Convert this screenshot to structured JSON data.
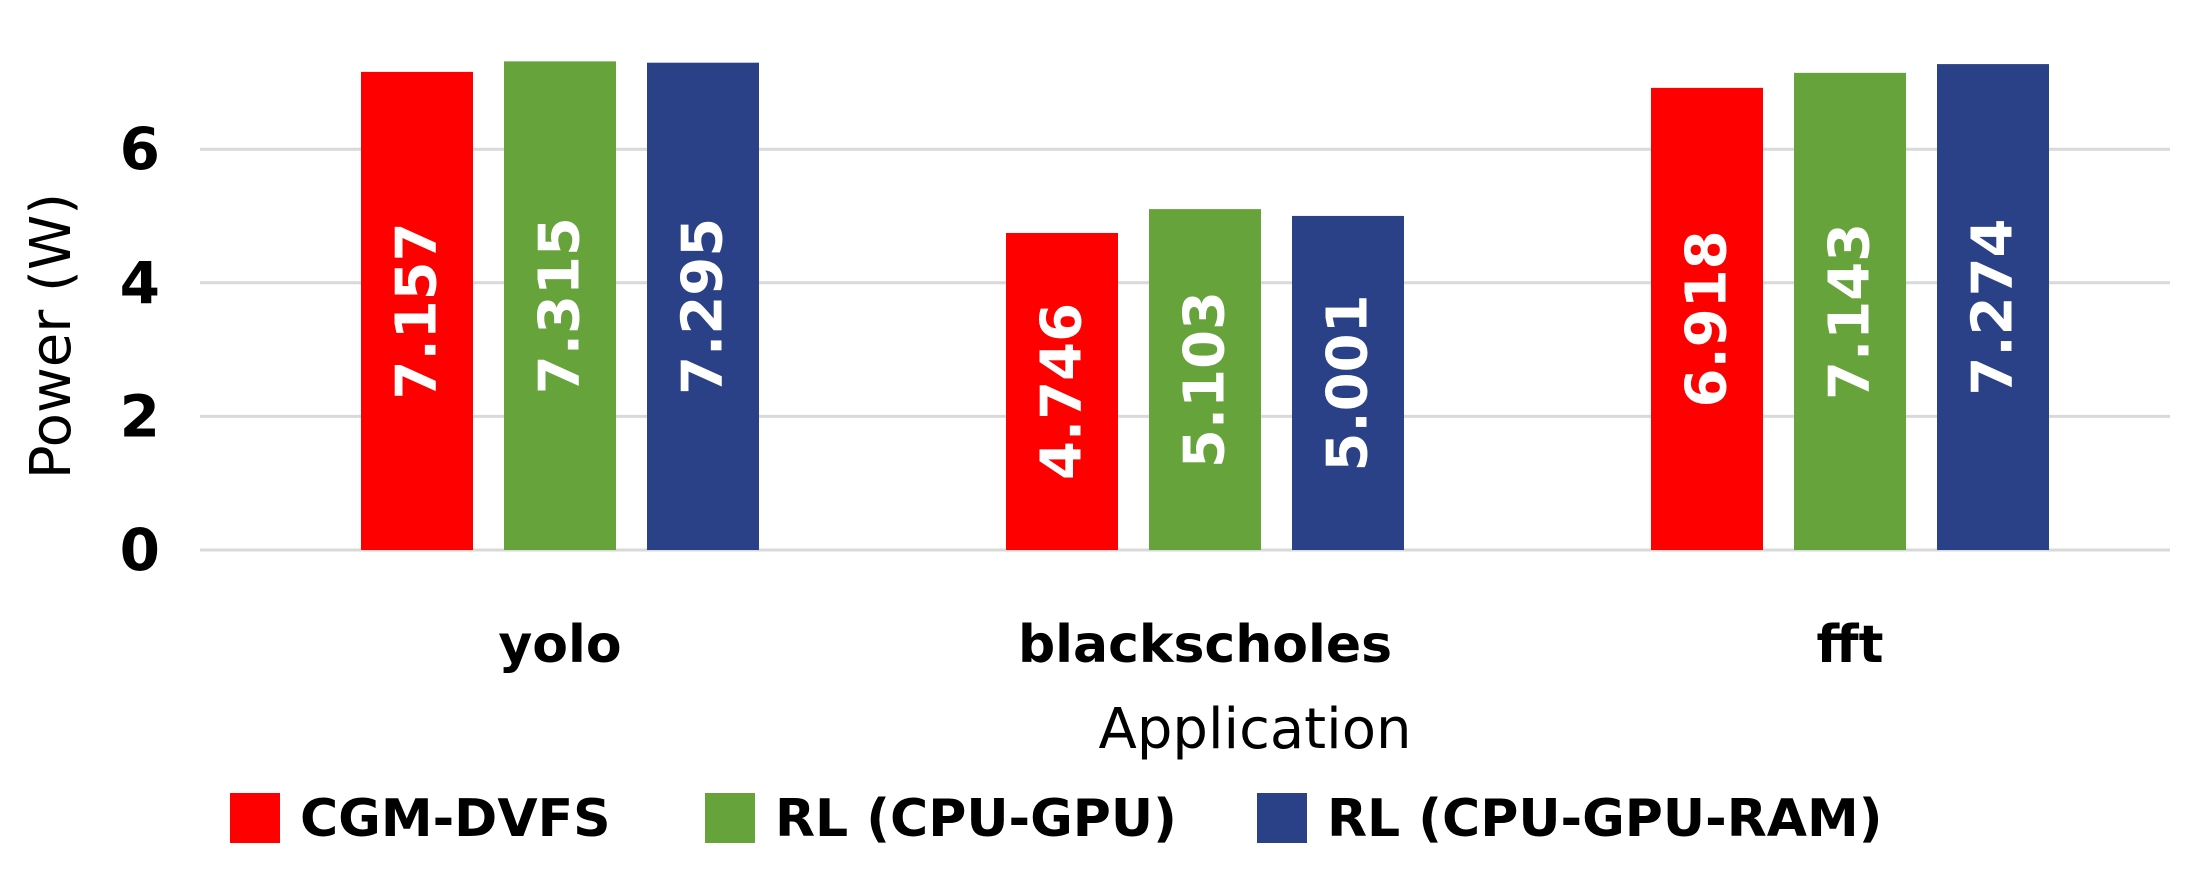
{
  "chart_data": {
    "type": "bar",
    "title": "",
    "xlabel": "Application",
    "ylabel": "Power (W)",
    "categories": [
      "yolo",
      "blackscholes",
      "fft"
    ],
    "series": [
      {
        "name": "CGM-DVFS",
        "color": "#ff0000",
        "values": [
          7.157,
          4.746,
          6.918
        ],
        "labels": [
          "7.157",
          "4.746",
          "6.918"
        ]
      },
      {
        "name": "RL (CPU-GPU)",
        "color": "#66a33b",
        "values": [
          7.315,
          5.103,
          7.143
        ],
        "labels": [
          "7.315",
          "5.103",
          "7.143"
        ]
      },
      {
        "name": "RL (CPU-GPU-RAM)",
        "color": "#2a4087",
        "values": [
          7.295,
          5.001,
          7.274
        ],
        "labels": [
          "7.295",
          "5.001",
          "7.274"
        ]
      }
    ],
    "yticks": [
      0,
      2,
      4,
      6
    ],
    "ytick_labels": [
      "0",
      "2",
      "4",
      "6"
    ],
    "ylim": [
      0,
      7.3
    ],
    "grid": true,
    "legend_position": "bottom"
  }
}
